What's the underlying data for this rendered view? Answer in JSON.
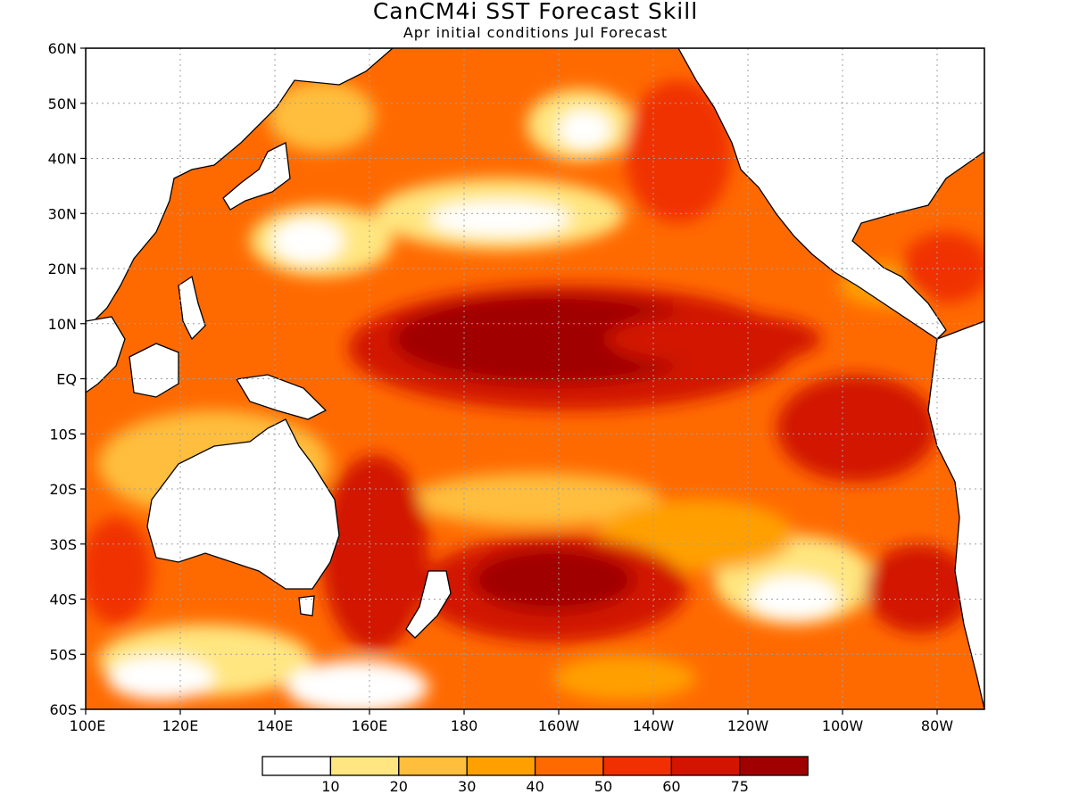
{
  "title": "CanCM4i SST Forecast Skill",
  "subtitle": "Apr initial conditions  Jul Forecast",
  "chart_data": {
    "type": "heatmap",
    "title": "CanCM4i SST Forecast Skill",
    "subtitle": "Apr initial conditions  Jul Forecast",
    "lon_range": [
      100,
      290
    ],
    "lat_range": [
      -60,
      60
    ],
    "lat_ticks": [
      "60N",
      "50N",
      "40N",
      "30N",
      "20N",
      "10N",
      "EQ",
      "10S",
      "20S",
      "30S",
      "40S",
      "50S",
      "60S"
    ],
    "lon_ticks": [
      "100E",
      "120E",
      "140E",
      "160E",
      "180",
      "160W",
      "140W",
      "120W",
      "100W",
      "80W"
    ],
    "grid": true,
    "colorbar": {
      "colors": [
        "#ffffff",
        "#ffe680",
        "#ffbe3c",
        "#ffa000",
        "#ff6a00",
        "#f03000",
        "#d21400",
        "#a00000"
      ],
      "labels": [
        "10",
        "20",
        "30",
        "40",
        "50",
        "60",
        "75"
      ]
    }
  }
}
